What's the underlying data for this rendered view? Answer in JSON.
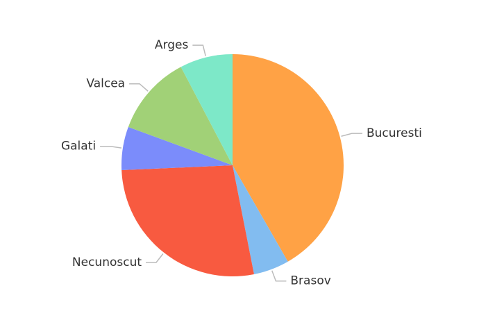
{
  "chart_data": {
    "type": "pie",
    "categories": [
      "Bucuresti",
      "Brasov",
      "Necunoscut",
      "Galati",
      "Valcea",
      "Arges"
    ],
    "values": [
      41.7,
      5.2,
      27.4,
      6.3,
      11.7,
      7.7
    ],
    "colors": [
      "#ffa245",
      "#82bcf0",
      "#f85a40",
      "#7b8cfb",
      "#a1d177",
      "#7de8c8"
    ]
  }
}
